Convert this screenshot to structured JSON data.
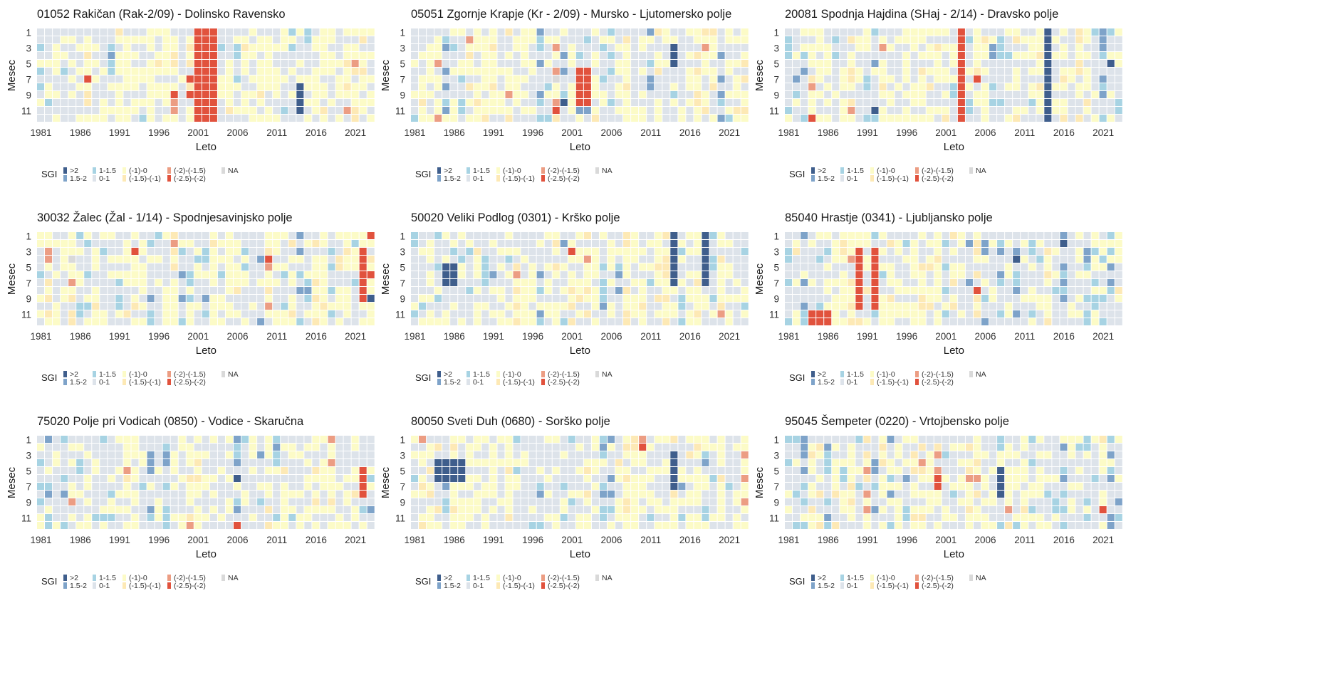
{
  "axis": {
    "ylabel": "Mesec",
    "xlabel": "Leto",
    "ytick_labels": [
      "1",
      "3",
      "5",
      "7",
      "9",
      "11"
    ],
    "xtick_labels": [
      "1981",
      "1986",
      "1991",
      "1996",
      "2001",
      "2006",
      "2011",
      "2016",
      "2021"
    ]
  },
  "legend": {
    "title": "SGI",
    "items": [
      {
        "label": ">2",
        "color": "#3f5e8c"
      },
      {
        "label": "1.5-2",
        "color": "#7ea3c9"
      },
      {
        "label": "1-1.5",
        "color": "#a7d3e3"
      },
      {
        "label": "0-1",
        "color": "#dde3ea"
      },
      {
        "label": "(-1)-0",
        "color": "#fcfbc7"
      },
      {
        "label": "(-1.5)-(-1)",
        "color": "#fde9b5"
      },
      {
        "label": "(-2)-(-1.5)",
        "color": "#ec9d83"
      },
      {
        "label": "(-2.5)-(-2)",
        "color": "#e1523d"
      },
      {
        "label": "NA",
        "color": "#d9d9d9"
      }
    ]
  },
  "chart_data": [
    {
      "type": "heatmap",
      "title": "01052 Rakičan (Rak-2/09) - Dolinsko Ravensko",
      "xlabel": "Leto",
      "ylabel": "Mesec",
      "x_range": [
        1981,
        2023
      ],
      "y_range": [
        1,
        12
      ],
      "colorscale_title": "SGI",
      "seed": 11,
      "notable": [
        {
          "years": [
            2001,
            2002,
            2003
          ],
          "months": [
            1,
            12
          ],
          "class": "(-2.5)-(-2)"
        },
        {
          "years": [
            2014
          ],
          "months": [
            8,
            11
          ],
          "class": ">2"
        }
      ]
    },
    {
      "type": "heatmap",
      "title": "05051 Zgornje Krapje (Kr - 2/09) - Mursko - Ljutomersko polje",
      "xlabel": "Leto",
      "ylabel": "Mesec",
      "x_range": [
        1981,
        2023
      ],
      "y_range": [
        1,
        12
      ],
      "colorscale_title": "SGI",
      "seed": 23,
      "notable": [
        {
          "years": [
            2002,
            2003
          ],
          "months": [
            6,
            10
          ],
          "class": "(-2.5)-(-2)"
        },
        {
          "years": [
            2014
          ],
          "months": [
            3,
            5
          ],
          "class": ">2"
        }
      ]
    },
    {
      "type": "heatmap",
      "title": "20081 Spodnja Hajdina (SHaj - 2/14) - Dravsko polje",
      "xlabel": "Leto",
      "ylabel": "Mesec",
      "x_range": [
        1981,
        2023
      ],
      "y_range": [
        1,
        12
      ],
      "colorscale_title": "SGI",
      "seed": 37,
      "notable": [
        {
          "years": [
            2003
          ],
          "months": [
            1,
            12
          ],
          "class": "(-2.5)-(-2)"
        },
        {
          "years": [
            2014
          ],
          "months": [
            1,
            12
          ],
          "class": ">2"
        }
      ]
    },
    {
      "type": "heatmap",
      "title": "30032 Žalec (Žal - 1/14) - Spodnjesavinjsko polje",
      "xlabel": "Leto",
      "ylabel": "Mesec",
      "x_range": [
        1981,
        2023
      ],
      "y_range": [
        1,
        12
      ],
      "colorscale_title": "SGI",
      "seed": 41,
      "notable": [
        {
          "years": [
            2022
          ],
          "months": [
            3,
            9
          ],
          "class": "(-2.5)-(-2)"
        },
        {
          "years": [
            2023
          ],
          "months": [
            9
          ],
          "class": ">2"
        }
      ]
    },
    {
      "type": "heatmap",
      "title": "50020 Veliki Podlog (0301) - Krško polje",
      "xlabel": "Leto",
      "ylabel": "Mesec",
      "x_range": [
        1981,
        2023
      ],
      "y_range": [
        1,
        12
      ],
      "colorscale_title": "SGI",
      "seed": 53,
      "notable": [
        {
          "years": [
            1985,
            1986
          ],
          "months": [
            5,
            7
          ],
          "class": ">2"
        },
        {
          "years": [
            2014,
            2018
          ],
          "months": [
            1,
            7
          ],
          "class": ">2"
        }
      ]
    },
    {
      "type": "heatmap",
      "title": "85040 Hrastje (0341) - Ljubljansko  polje",
      "xlabel": "Leto",
      "ylabel": "Mesec",
      "x_range": [
        1981,
        2023
      ],
      "y_range": [
        1,
        12
      ],
      "colorscale_title": "SGI",
      "seed": 67,
      "notable": [
        {
          "years": [
            1984,
            1985,
            1986
          ],
          "months": [
            11,
            12
          ],
          "class": "(-2.5)-(-2)"
        },
        {
          "years": [
            1990,
            1992
          ],
          "months": [
            3,
            10
          ],
          "class": "(-2.5)-(-2)"
        }
      ]
    },
    {
      "type": "heatmap",
      "title": "75020 Polje pri Vodicah (0850) - Vodice - Skaručna",
      "xlabel": "Leto",
      "ylabel": "Mesec",
      "x_range": [
        1981,
        2023
      ],
      "y_range": [
        1,
        12
      ],
      "colorscale_title": "SGI",
      "seed": 79,
      "notable": [
        {
          "years": [
            2006
          ],
          "months": [
            12
          ],
          "class": "(-2.5)-(-2)"
        },
        {
          "years": [
            2022
          ],
          "months": [
            5,
            8
          ],
          "class": "(-2.5)-(-2)"
        }
      ]
    },
    {
      "type": "heatmap",
      "title": "80050 Sveti Duh (0680) - Sorško polje",
      "xlabel": "Leto",
      "ylabel": "Mesec",
      "x_range": [
        1981,
        2023
      ],
      "y_range": [
        1,
        12
      ],
      "colorscale_title": "SGI",
      "seed": 83,
      "notable": [
        {
          "years": [
            1984,
            1985,
            1986,
            1987
          ],
          "months": [
            4,
            6
          ],
          "class": ">2"
        },
        {
          "years": [
            2014
          ],
          "months": [
            3,
            7
          ],
          "class": ">2"
        }
      ]
    },
    {
      "type": "heatmap",
      "title": "95045 Šempeter (0220) - Vrtojbensko polje",
      "xlabel": "Leto",
      "ylabel": "Mesec",
      "x_range": [
        1981,
        2023
      ],
      "y_range": [
        1,
        12
      ],
      "colorscale_title": "SGI",
      "seed": 97,
      "notable": [
        {
          "years": [
            2008
          ],
          "months": [
            5,
            8
          ],
          "class": ">2"
        },
        {
          "years": [
            2021
          ],
          "months": [
            10
          ],
          "class": "(-2.5)-(-2)"
        }
      ]
    }
  ]
}
